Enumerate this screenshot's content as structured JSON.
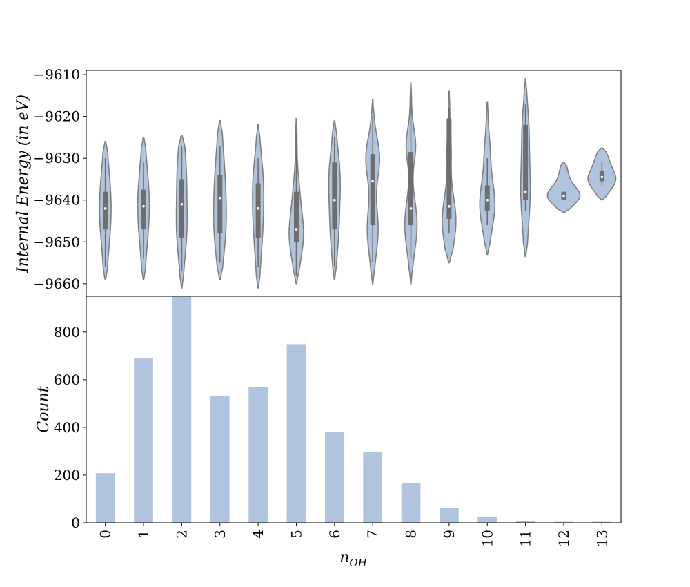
{
  "colors": {
    "fill": "#b0c4de",
    "stroke": "#7f7f7f",
    "box": "#6e6e6e",
    "median": "#ffffff"
  },
  "chart_data": [
    {
      "type": "violin",
      "ylabel": "Internal Energy (in eV)",
      "ylim": [
        -9663,
        -9609
      ],
      "yticks": [
        -9610,
        -9620,
        -9630,
        -9640,
        -9650,
        -9660
      ],
      "ytick_labels": [
        "−9610",
        "−9620",
        "−9630",
        "−9640",
        "−9650",
        "−9660"
      ],
      "categories": [
        "0",
        "1",
        "2",
        "3",
        "4",
        "5",
        "6",
        "7",
        "8",
        "9",
        "10",
        "11",
        "12",
        "13"
      ],
      "violins": [
        {
          "min": -9659,
          "max": -9626,
          "q1": -9647,
          "median": -9642,
          "q3": -9638,
          "w_lo": -9656,
          "w_hi": -9630,
          "modes": [
            [
              -9642,
              7.5,
              9
            ]
          ]
        },
        {
          "min": -9659,
          "max": -9625,
          "q1": -9647,
          "median": -9641.5,
          "q3": -9637.5,
          "w_lo": -9654,
          "w_hi": -9631,
          "modes": [
            [
              -9641.5,
              7.5,
              9
            ]
          ]
        },
        {
          "min": -9661,
          "max": -9624.5,
          "q1": -9649,
          "median": -9641,
          "q3": -9635,
          "w_lo": -9657,
          "w_hi": -9627,
          "modes": [
            [
              -9647,
              6,
              7
            ],
            [
              -9633,
              5,
              7
            ]
          ]
        },
        {
          "min": -9659,
          "max": -9621,
          "q1": -9648,
          "median": -9639.5,
          "q3": -9634,
          "w_lo": -9655,
          "w_hi": -9627,
          "modes": [
            [
              -9636,
              6,
              9
            ],
            [
              -9648,
              5,
              7
            ]
          ]
        },
        {
          "min": -9661,
          "max": -9622,
          "q1": -9649,
          "median": -9642,
          "q3": -9636,
          "w_lo": -9656,
          "w_hi": -9630,
          "modes": [
            [
              -9644,
              6,
              9
            ],
            [
              -9634,
              3,
              6
            ]
          ]
        },
        {
          "min": -9660,
          "max": -9620.5,
          "q1": -9650,
          "median": -9647,
          "q3": -9638,
          "w_lo": -9658,
          "w_hi": -9624,
          "modes": [
            [
              -9648,
              9.5,
              6
            ],
            [
              -9637,
              2,
              4
            ]
          ]
        },
        {
          "min": -9659,
          "max": -9621,
          "q1": -9647,
          "median": -9640,
          "q3": -9631,
          "w_lo": -9656,
          "w_hi": -9625,
          "modes": [
            [
              -9635,
              7,
              7
            ],
            [
              -9648,
              4,
              6
            ]
          ]
        },
        {
          "min": -9660,
          "max": -9616,
          "q1": -9646,
          "median": -9635.5,
          "q3": -9629,
          "w_lo": -9655,
          "w_hi": -9620,
          "modes": [
            [
              -9630,
              9,
              5
            ],
            [
              -9647,
              7,
              6
            ]
          ]
        },
        {
          "min": -9660,
          "max": -9612,
          "q1": -9646,
          "median": -9642,
          "q3": -9628.5,
          "w_lo": -9654,
          "w_hi": -9617,
          "modes": [
            [
              -9627,
              6,
              4
            ],
            [
              -9646,
              8,
              6
            ]
          ]
        },
        {
          "min": -9655,
          "max": -9614,
          "q1": -9644.5,
          "median": -9641.5,
          "q3": -9620.5,
          "w_lo": -9648,
          "w_hi": -9618,
          "modes": [
            [
              -9645,
              9,
              6
            ],
            [
              -9628,
              2,
              4
            ]
          ]
        },
        {
          "min": -9653,
          "max": -9616.5,
          "q1": -9642.5,
          "median": -9640,
          "q3": -9636.5,
          "w_lo": -9646,
          "w_hi": -9630,
          "modes": [
            [
              -9641,
              10,
              6
            ],
            [
              -9628,
              2.5,
              4
            ]
          ]
        },
        {
          "min": -9653.5,
          "max": -9611,
          "q1": -9640,
          "median": -9638,
          "q3": -9622,
          "w_lo": -9642.5,
          "w_hi": -9617,
          "modes": [
            [
              -9637,
              6,
              9
            ],
            [
              -9622,
              2.5,
              5
            ]
          ]
        },
        {
          "min": -9643,
          "max": -9631,
          "q1": -9640,
          "median": -9639,
          "q3": -9638,
          "w_lo": -9640,
          "w_hi": -9638,
          "modes": [
            [
              -9639,
              22,
              2.2
            ],
            [
              -9634,
              5,
              2.5
            ]
          ]
        },
        {
          "min": -9640,
          "max": -9627.5,
          "q1": -9635.5,
          "median": -9634.5,
          "q3": -9633,
          "w_lo": -9636.5,
          "w_hi": -9631,
          "modes": [
            [
              -9635,
              19,
              2.6
            ],
            [
              -9630,
              6,
              2
            ]
          ]
        }
      ]
    },
    {
      "type": "bar",
      "xlabel": "n_OH",
      "ylabel": "Count",
      "ylim": [
        0,
        950
      ],
      "yticks": [
        0,
        200,
        400,
        600,
        800
      ],
      "categories": [
        "0",
        "1",
        "2",
        "3",
        "4",
        "5",
        "6",
        "7",
        "8",
        "9",
        "10",
        "11",
        "12",
        "13"
      ],
      "values": [
        208,
        692,
        948,
        531,
        569,
        749,
        382,
        297,
        165,
        62,
        24,
        7,
        4,
        4
      ]
    }
  ]
}
